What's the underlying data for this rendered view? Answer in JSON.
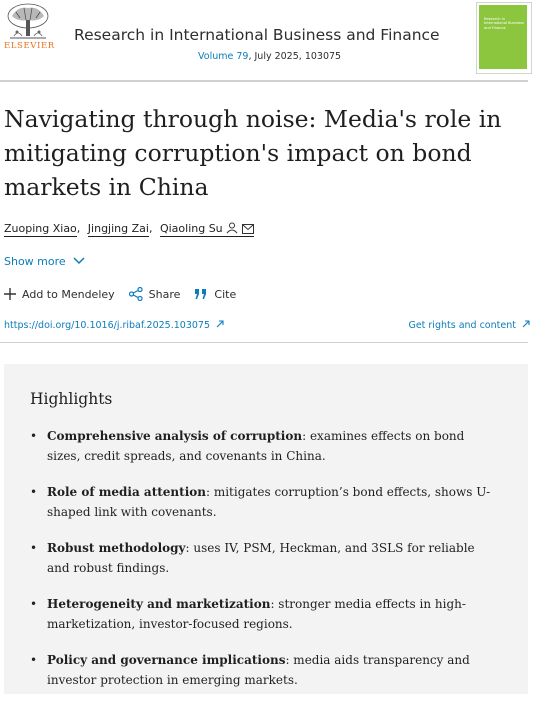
{
  "header": {
    "publisher": "ELSEVIER",
    "journal_title": "Research in International Business and Finance",
    "volume_link": "Volume 79",
    "issue_info": ", July 2025, 103075",
    "cover_text": "Research in International Business and Finance"
  },
  "article": {
    "title": "Navigating through noise: Media's role in mitigating corruption's impact on bond markets in China",
    "authors": [
      "Zuoping Xiao",
      "Jingjing Zai",
      "Qiaoling Su"
    ],
    "show_more": "Show more",
    "actions": {
      "mendeley": "Add to Mendeley",
      "share": "Share",
      "cite": "Cite"
    },
    "doi": "https://doi.org/10.1016/j.ribaf.2025.103075",
    "rights": "Get rights and content"
  },
  "highlights": {
    "title": "Highlights",
    "items": [
      {
        "bold": "Comprehensive analysis of corruption",
        "text": ": examines effects on bond sizes, credit spreads, and covenants in China."
      },
      {
        "bold": "Role of media attention",
        "text": ": mitigates corruption’s bond effects, shows U-shaped link with covenants."
      },
      {
        "bold": "Robust methodology",
        "text": ": uses IV, PSM, Heckman, and 3SLS for reliable and robust findings."
      },
      {
        "bold": "Heterogeneity and marketization",
        "text": ": stronger media effects in high-marketization, investor-focused regions."
      },
      {
        "bold": "Policy and governance implications",
        "text": ": media aids transparency and investor protection in emerging markets."
      }
    ]
  },
  "colors": {
    "link": "#0c7dbb",
    "elsevier_orange": "#e9711c",
    "highlights_bg": "#f3f3f3",
    "cover_green": "#8cc63f"
  },
  "icons": [
    "elsevier-tree-logo",
    "person-icon",
    "envelope-icon",
    "chevron-down-icon",
    "plus-icon",
    "share-icon",
    "quote-icon",
    "external-arrow-icon"
  ]
}
